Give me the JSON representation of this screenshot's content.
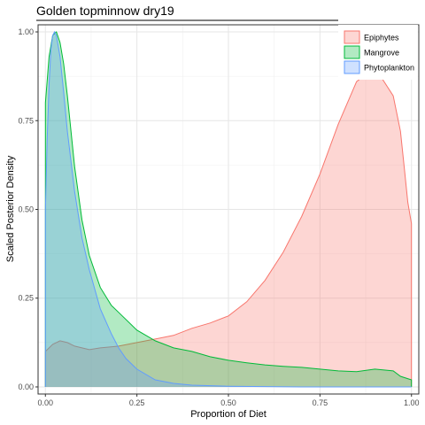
{
  "chart_data": {
    "type": "area",
    "title": "Golden topminnow dry19",
    "xlabel": "Proportion of Diet",
    "ylabel": "Scaled Posterior Density",
    "xlim": [
      -0.02,
      1.02
    ],
    "ylim": [
      -0.02,
      1.02
    ],
    "x_ticks": [
      0.0,
      0.25,
      0.5,
      0.75,
      1.0
    ],
    "x_tick_labels": [
      "0.00",
      "0.25",
      "0.50",
      "0.75",
      "1.00"
    ],
    "y_ticks": [
      0.0,
      0.25,
      0.5,
      0.75,
      1.0
    ],
    "y_tick_labels": [
      "0.00",
      "0.25",
      "0.50",
      "0.75",
      "1.00"
    ],
    "grid": true,
    "legend_position": "top-right",
    "series": [
      {
        "name": "Epiphytes",
        "fill": "#F8766D",
        "x": [
          0.0,
          0.02,
          0.04,
          0.06,
          0.08,
          0.1,
          0.12,
          0.15,
          0.2,
          0.25,
          0.3,
          0.35,
          0.4,
          0.45,
          0.5,
          0.55,
          0.6,
          0.65,
          0.7,
          0.75,
          0.8,
          0.85,
          0.9,
          0.95,
          0.97,
          0.98,
          0.99,
          1.0
        ],
        "y": [
          0.1,
          0.12,
          0.13,
          0.125,
          0.115,
          0.11,
          0.105,
          0.11,
          0.115,
          0.125,
          0.135,
          0.145,
          0.165,
          0.18,
          0.2,
          0.24,
          0.3,
          0.38,
          0.48,
          0.6,
          0.74,
          0.86,
          0.9,
          0.82,
          0.72,
          0.62,
          0.52,
          0.46
        ]
      },
      {
        "name": "Mangrove",
        "fill": "#00BA38",
        "x": [
          0.0,
          0.01,
          0.02,
          0.03,
          0.04,
          0.05,
          0.06,
          0.07,
          0.08,
          0.1,
          0.12,
          0.15,
          0.18,
          0.2,
          0.25,
          0.3,
          0.35,
          0.4,
          0.45,
          0.5,
          0.55,
          0.6,
          0.65,
          0.7,
          0.75,
          0.8,
          0.85,
          0.9,
          0.95,
          0.97,
          1.0
        ],
        "y": [
          0.8,
          0.93,
          0.99,
          1.0,
          0.97,
          0.91,
          0.82,
          0.72,
          0.62,
          0.47,
          0.37,
          0.28,
          0.23,
          0.21,
          0.16,
          0.13,
          0.11,
          0.1,
          0.085,
          0.075,
          0.068,
          0.062,
          0.058,
          0.055,
          0.05,
          0.045,
          0.043,
          0.05,
          0.045,
          0.03,
          0.02
        ]
      },
      {
        "name": "Phytoplankton",
        "fill": "#619CFF",
        "x": [
          0.0,
          0.005,
          0.01,
          0.015,
          0.02,
          0.025,
          0.03,
          0.04,
          0.05,
          0.06,
          0.08,
          0.1,
          0.12,
          0.15,
          0.18,
          0.2,
          0.22,
          0.25,
          0.3,
          0.35,
          0.4,
          0.5,
          0.6,
          0.7,
          0.8,
          0.9,
          1.0
        ],
        "y": [
          0.5,
          0.7,
          0.85,
          0.95,
          0.99,
          1.0,
          0.99,
          0.93,
          0.83,
          0.72,
          0.55,
          0.42,
          0.33,
          0.22,
          0.15,
          0.11,
          0.08,
          0.05,
          0.02,
          0.01,
          0.005,
          0.002,
          0.001,
          0.0,
          0.0,
          0.0,
          0.0
        ]
      }
    ]
  }
}
